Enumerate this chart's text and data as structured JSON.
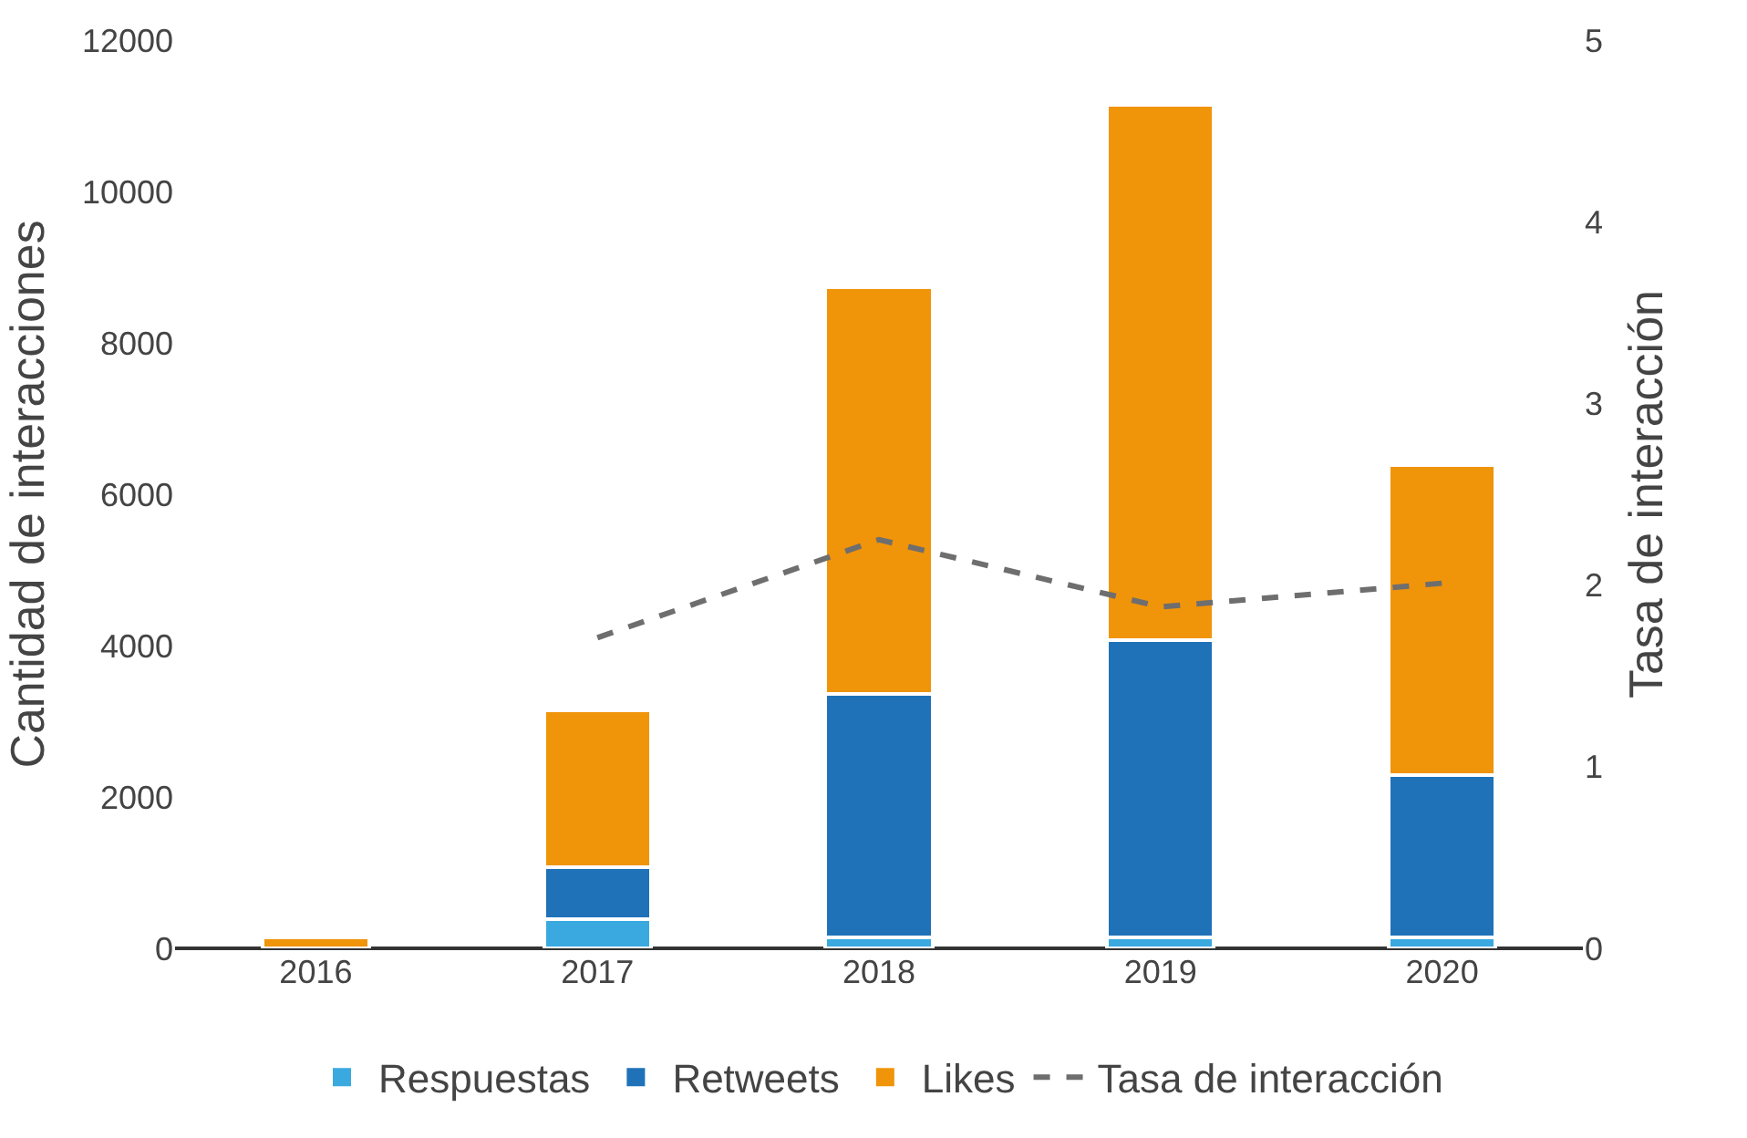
{
  "chart_data": {
    "type": "bar",
    "stacked": true,
    "ylabel": "Cantidad de interacciones",
    "y2label": "Tasa de interacción",
    "categories": [
      "2016",
      "2017",
      "2018",
      "2019",
      "2020"
    ],
    "series": [
      {
        "name": "Respuestas",
        "color": "#3aa9e0",
        "values": [
          0,
          380,
          150,
          150,
          150
        ]
      },
      {
        "name": "Retweets",
        "color": "#1f72b8",
        "values": [
          0,
          690,
          3210,
          3920,
          2140
        ]
      },
      {
        "name": "Likes",
        "color": "#f0940a",
        "values": [
          150,
          2070,
          5380,
          7070,
          4090
        ]
      },
      {
        "name": "Tasa de interacción",
        "type": "line",
        "axis": "y2",
        "color": "#6e6e6e",
        "line_style": "dashed",
        "marker": "none",
        "values": [
          null,
          1.71,
          2.25,
          1.88,
          2.01
        ]
      }
    ],
    "ylim": [
      0,
      12000
    ],
    "yticks": [
      0,
      2000,
      4000,
      6000,
      8000,
      10000,
      12000
    ],
    "y2lim": [
      0,
      5
    ],
    "y2ticks": [
      0,
      1,
      2,
      3,
      4,
      5
    ],
    "legend": "bottom"
  }
}
